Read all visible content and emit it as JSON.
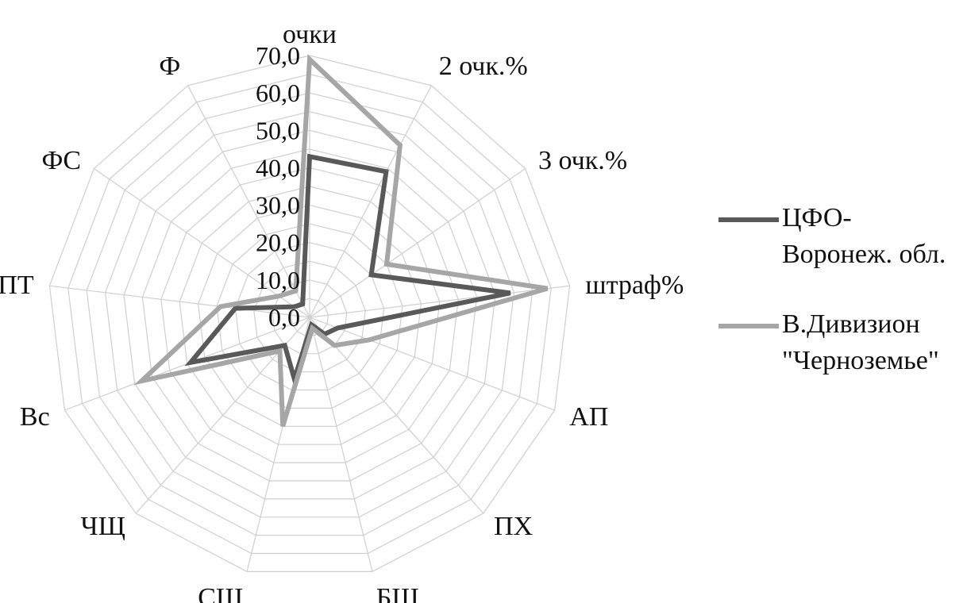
{
  "chart_data": {
    "type": "radar",
    "title": "",
    "axes": [
      "очки",
      "2 очк.%",
      "3 очк.%",
      "штраф%",
      "АП",
      "ПХ",
      "БШ",
      "СЩ",
      "ЧЩ",
      "Вс",
      "ПТ",
      "ФС",
      "Ф"
    ],
    "tick_labels": [
      "0,0",
      "10,0",
      "20,0",
      "30,0",
      "40,0",
      "50,0",
      "60,0",
      "70,0"
    ],
    "rlim": [
      0,
      70
    ],
    "grid": true,
    "legend_position": "right",
    "series": [
      {
        "name": "ЦФО-Воронеж. обл.",
        "legend_lines": [
          "ЦФО-",
          "Воронеж. обл."
        ],
        "color": "#595959",
        "values": [
          43,
          44,
          20,
          54,
          8,
          6,
          2,
          17,
          10,
          34,
          20,
          5,
          4
        ]
      },
      {
        "name": "В.Дивизион \"Черноземье\"",
        "legend_lines": [
          "В.Дивизион",
          "\"Черноземье\""
        ],
        "color": "#a6a6a6",
        "values": [
          69,
          52,
          25,
          64,
          17,
          10,
          3,
          30,
          12,
          48,
          24,
          10,
          8
        ]
      }
    ]
  }
}
